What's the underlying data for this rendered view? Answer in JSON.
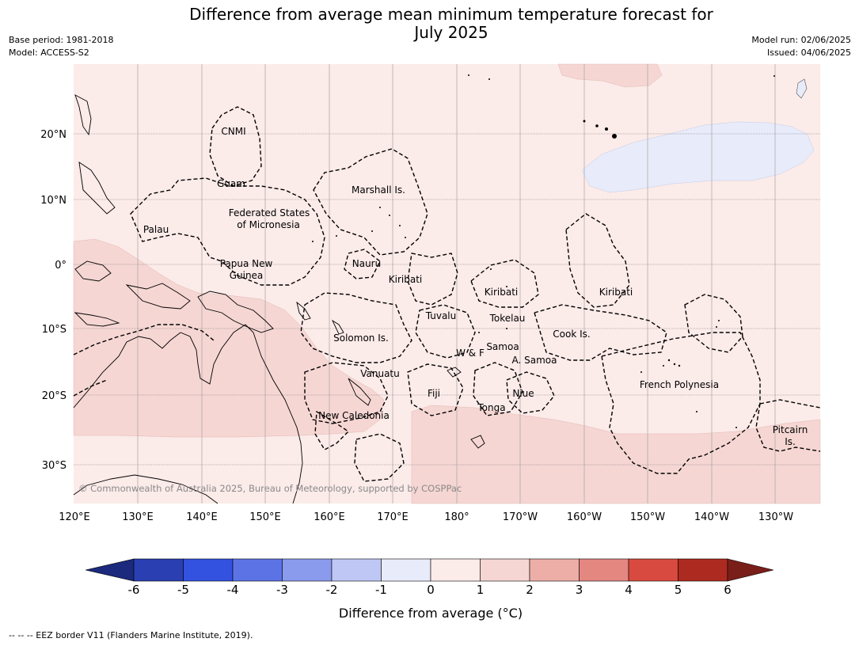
{
  "header": {
    "title_line1": "Difference from average mean minimum temperature forecast for",
    "title_line2": "July 2025",
    "base_period": "Base period: 1981-2018",
    "model": "Model: ACCESS-S2",
    "model_run": "Model run: 02/06/2025",
    "issued": "Issued: 04/06/2025"
  },
  "map": {
    "lat_labels": [
      "20°N",
      "10°N",
      "0°",
      "10°S",
      "20°S",
      "30°S"
    ],
    "lon_labels": [
      "120°E",
      "130°E",
      "140°E",
      "150°E",
      "160°E",
      "170°E",
      "180°",
      "170°W",
      "160°W",
      "150°W",
      "140°W",
      "130°W"
    ],
    "places": {
      "cnmi": "CNMI",
      "guam": "Guam",
      "marshall": "Marshall Is.",
      "fsm_1": "Federated States",
      "fsm_2": "of Micronesia",
      "palau": "Palau",
      "png_1": "Papua New",
      "png_2": "Guinea",
      "nauru": "Nauru",
      "kiribati_w": "Kiribati",
      "kiribati_c": "Kiribati",
      "kiribati_e": "Kiribati",
      "tuvalu": "Tuvalu",
      "tokelau": "Tokelau",
      "cook": "Cook Is.",
      "solomon": "Solomon Is.",
      "wf": "W & F",
      "samoa": "Samoa",
      "asamoa": "A. Samoa",
      "vanuatu": "Vanuatu",
      "fiji": "Fiji",
      "niue": "Niue",
      "tonga": "Tonga",
      "frenchpoly": "French Polynesia",
      "newcal": "New Caledonia",
      "pitcairn_1": "Pitcairn",
      "pitcairn_2": "Is."
    },
    "copyright": "© Commonwealth of Australia 2025, Bureau of Meteorology, supported by COSPPac",
    "colors": {
      "bin_0_1": "#fbebe9",
      "bin_1_2": "#f5d6d3",
      "bin_m1_0": "#e8ebf9",
      "land_line": "#000000"
    }
  },
  "colorbar": {
    "ticks": [
      "-6",
      "-5",
      "-4",
      "-3",
      "-2",
      "-1",
      "0",
      "1",
      "2",
      "3",
      "4",
      "5",
      "6"
    ],
    "colors": [
      "#1b2a7c",
      "#2a3fb2",
      "#3352e0",
      "#5c73e6",
      "#8a9bed",
      "#bfc7f4",
      "#e8ebf9",
      "#fbebe9",
      "#f5d6d3",
      "#edaea8",
      "#e48780",
      "#d84a3f",
      "#ad2a21",
      "#7a1e1a"
    ],
    "label": "Difference from average (°C)"
  },
  "footer": {
    "legend": "-- -- -- EEZ border V11 (Flanders Marine Institute, 2019)."
  }
}
